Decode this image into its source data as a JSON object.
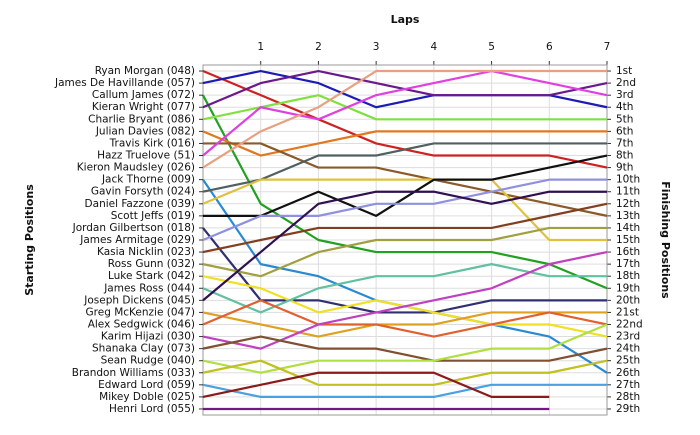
{
  "chart_data": {
    "type": "line",
    "x_label": "Laps",
    "y_label": "Starting Positions",
    "y2_label": "Finishing Positions",
    "x": [
      0,
      1,
      2,
      3,
      4,
      5,
      6,
      7
    ],
    "xlim": [
      0,
      7
    ],
    "xticks": [
      1,
      2,
      3,
      4,
      5,
      6,
      7
    ],
    "ylim": [
      0.5,
      29.5
    ],
    "y_inverted": true,
    "grid": true,
    "yticks": [
      {
        "value": 1,
        "label": "1st"
      },
      {
        "value": 2,
        "label": "2nd"
      },
      {
        "value": 3,
        "label": "3rd"
      },
      {
        "value": 4,
        "label": "4th"
      },
      {
        "value": 5,
        "label": "5th"
      },
      {
        "value": 6,
        "label": "6th"
      },
      {
        "value": 7,
        "label": "7th"
      },
      {
        "value": 8,
        "label": "8th"
      },
      {
        "value": 9,
        "label": "9th"
      },
      {
        "value": 10,
        "label": "10th"
      },
      {
        "value": 11,
        "label": "11th"
      },
      {
        "value": 12,
        "label": "12th"
      },
      {
        "value": 13,
        "label": "13th"
      },
      {
        "value": 14,
        "label": "14th"
      },
      {
        "value": 15,
        "label": "15th"
      },
      {
        "value": 16,
        "label": "16th"
      },
      {
        "value": 17,
        "label": "17th"
      },
      {
        "value": 18,
        "label": "18th"
      },
      {
        "value": 19,
        "label": "19th"
      },
      {
        "value": 20,
        "label": "20th"
      },
      {
        "value": 21,
        "label": "21st"
      },
      {
        "value": 22,
        "label": "22nd"
      },
      {
        "value": 23,
        "label": "23rd"
      },
      {
        "value": 24,
        "label": "24th"
      },
      {
        "value": 25,
        "label": "25th"
      },
      {
        "value": 26,
        "label": "26th"
      },
      {
        "value": 27,
        "label": "27th"
      },
      {
        "value": 28,
        "label": "28th"
      },
      {
        "value": 29,
        "label": "29th"
      }
    ],
    "series": [
      {
        "name": "Ryan Morgan (048)",
        "color": "#cc2222",
        "values": [
          1,
          3,
          5,
          7,
          8,
          8,
          8,
          9
        ]
      },
      {
        "name": "James De Havillande (057)",
        "color": "#1c1cb4",
        "values": [
          2,
          1,
          2,
          4,
          3,
          3,
          3,
          4
        ]
      },
      {
        "name": "Callum James (072)",
        "color": "#22a022",
        "values": [
          3,
          12,
          15,
          16,
          16,
          16,
          17,
          19
        ]
      },
      {
        "name": "Kieran Wright (077)",
        "color": "#6a1a8a",
        "values": [
          4,
          2,
          1,
          2,
          3,
          3,
          3,
          2
        ]
      },
      {
        "name": "Charlie Bryant (086)",
        "color": "#80e040",
        "values": [
          5,
          4,
          3,
          5,
          5,
          5,
          5,
          5
        ]
      },
      {
        "name": "Julian Davies (082)",
        "color": "#e07820",
        "values": [
          6,
          8,
          7,
          6,
          6,
          6,
          6,
          6
        ]
      },
      {
        "name": "Travis Kirk (016)",
        "color": "#8b5a2b",
        "values": [
          7,
          7,
          9,
          9,
          10,
          11,
          12,
          13
        ]
      },
      {
        "name": "Hazz Truelove (51)",
        "color": "#e040e0",
        "values": [
          8,
          4,
          5,
          3,
          2,
          1,
          2,
          3
        ]
      },
      {
        "name": "Kieron Maudsley (026)",
        "color": "#e8a080",
        "values": [
          9,
          6,
          4,
          1,
          1,
          1,
          1,
          1
        ]
      },
      {
        "name": "Jack Thorne (009)",
        "color": "#2a8ad0",
        "values": [
          10,
          17,
          18,
          20,
          21,
          22,
          23,
          26
        ]
      },
      {
        "name": "Gavin Forsyth (024)",
        "color": "#506060",
        "values": [
          11,
          10,
          8,
          8,
          7,
          7,
          7,
          7
        ]
      },
      {
        "name": "Daniel Fazzone (039)",
        "color": "#e0c040",
        "values": [
          12,
          10,
          10,
          10,
          10,
          10,
          15,
          15
        ]
      },
      {
        "name": "Scott Jeffs (019)",
        "color": "#101010",
        "values": [
          13,
          13,
          11,
          13,
          10,
          10,
          9,
          8
        ]
      },
      {
        "name": "Jordan Gilbertson (018)",
        "color": "#303070",
        "values": [
          14,
          20,
          20,
          21,
          21,
          20,
          20,
          20
        ]
      },
      {
        "name": "James Armitage (029)",
        "color": "#9090e0",
        "values": [
          15,
          13,
          13,
          12,
          12,
          11,
          10,
          10
        ]
      },
      {
        "name": "Kasia Nicklin (023)",
        "color": "#804020",
        "values": [
          16,
          15,
          14,
          14,
          14,
          14,
          13,
          12
        ]
      },
      {
        "name": "Ross Gunn (032)",
        "color": "#a0a040",
        "values": [
          17,
          18,
          16,
          15,
          15,
          15,
          14,
          14
        ]
      },
      {
        "name": "Luke Stark (042)",
        "color": "#f0e020",
        "values": [
          18,
          19,
          21,
          20,
          21,
          22,
          22,
          23
        ]
      },
      {
        "name": "James Ross (044)",
        "color": "#60c0a0",
        "values": [
          19,
          21,
          19,
          18,
          18,
          17,
          18,
          18
        ]
      },
      {
        "name": "Joseph Dickens (045)",
        "color": "#301050",
        "values": [
          20,
          16,
          12,
          11,
          11,
          12,
          11,
          11
        ]
      },
      {
        "name": "Greg McKenzie (047)",
        "color": "#e0a020",
        "values": [
          21,
          22,
          23,
          22,
          22,
          21,
          21,
          21
        ]
      },
      {
        "name": "Alex Sedgwick (046)",
        "color": "#e06030",
        "values": [
          22,
          20,
          22,
          22,
          23,
          22,
          21,
          22
        ]
      },
      {
        "name": "Karim Hijazi (030)",
        "color": "#c040c0",
        "values": [
          23,
          24,
          22,
          21,
          20,
          19,
          17,
          16
        ]
      },
      {
        "name": "Shanaka Clay (073)",
        "color": "#805030",
        "values": [
          24,
          23,
          24,
          24,
          25,
          25,
          25,
          24
        ]
      },
      {
        "name": "Sean Rudge (040)",
        "color": "#b0e040",
        "values": [
          25,
          26,
          25,
          25,
          25,
          24,
          24,
          22
        ]
      },
      {
        "name": "Brandon Williams (033)",
        "color": "#c0c020",
        "values": [
          26,
          25,
          27,
          27,
          27,
          26,
          26,
          25
        ]
      },
      {
        "name": "Edward Lord (059)",
        "color": "#4aa0e0",
        "values": [
          27,
          28,
          28,
          28,
          28,
          27,
          27,
          27
        ]
      },
      {
        "name": "Mikey Doble (025)",
        "color": "#8b1a1a",
        "values": [
          28,
          27,
          26,
          26,
          26,
          28,
          28,
          null
        ]
      },
      {
        "name": "Henri Lord (055)",
        "color": "#701a80",
        "values": [
          29,
          29,
          29,
          29,
          29,
          29,
          29,
          null
        ]
      }
    ]
  }
}
